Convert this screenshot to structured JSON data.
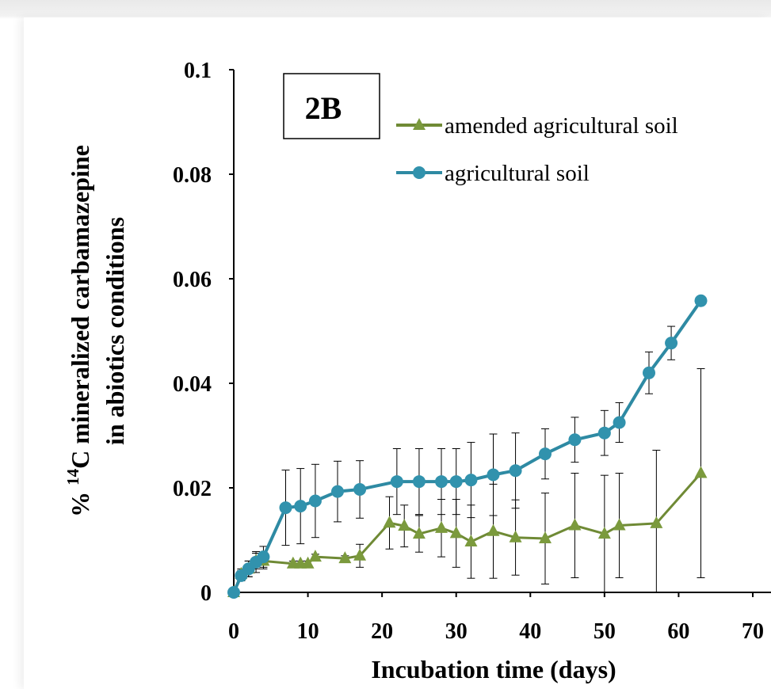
{
  "chart_data": {
    "type": "line",
    "panel_label": "2B",
    "title": "",
    "xlabel": "Incubation time (days)",
    "ylabel_line1_prefix": "% ",
    "ylabel_line1_sup": "14",
    "ylabel_line1_rest": "C mineralized carbamazepine",
    "ylabel_line2": "in abiotics conditions",
    "xlim": [
      0,
      70
    ],
    "ylim": [
      0,
      0.1
    ],
    "xticks": [
      "0",
      "10",
      "20",
      "30",
      "40",
      "50",
      "60",
      "70"
    ],
    "yticks": [
      "0",
      "0.02",
      "0.04",
      "0.06",
      "0.08",
      "0.1"
    ],
    "grid": false,
    "legend_position": "top-right",
    "series": [
      {
        "name": "amended agricultural soil",
        "marker": "triangle",
        "color": "#6f8a35",
        "marker_color": "#7b9a3d",
        "points": [
          {
            "x": 0,
            "y": 0,
            "err": 0
          },
          {
            "x": 1,
            "y": 0.0035,
            "err": 0.001
          },
          {
            "x": 2,
            "y": 0.0045,
            "err": 0.0015
          },
          {
            "x": 3,
            "y": 0.006,
            "err": 0.0015
          },
          {
            "x": 4,
            "y": 0.006,
            "err": 0.0015
          },
          {
            "x": 8,
            "y": 0.0055,
            "err": 0.0005
          },
          {
            "x": 9,
            "y": 0.0055,
            "err": 0.0005
          },
          {
            "x": 10,
            "y": 0.0055,
            "err": 0.0005
          },
          {
            "x": 11,
            "y": 0.0068,
            "err": 0.0005
          },
          {
            "x": 15,
            "y": 0.0065,
            "err": 0.0005
          },
          {
            "x": 17,
            "y": 0.007,
            "err": 0.0022
          },
          {
            "x": 21,
            "y": 0.0133,
            "err": 0.005
          },
          {
            "x": 23,
            "y": 0.0127,
            "err": 0.004
          },
          {
            "x": 25,
            "y": 0.0112,
            "err": 0.0035
          },
          {
            "x": 28,
            "y": 0.0123,
            "err": 0.0055
          },
          {
            "x": 30,
            "y": 0.0113,
            "err": 0.0065
          },
          {
            "x": 32,
            "y": 0.0097,
            "err": 0.007
          },
          {
            "x": 35,
            "y": 0.0117,
            "err": 0.009
          },
          {
            "x": 38,
            "y": 0.0105,
            "err": 0.0072
          },
          {
            "x": 42,
            "y": 0.0103,
            "err": 0.0087
          },
          {
            "x": 46,
            "y": 0.0128,
            "err": 0.01
          },
          {
            "x": 50,
            "y": 0.0112,
            "err": 0.0112
          },
          {
            "x": 52,
            "y": 0.0128,
            "err": 0.01
          },
          {
            "x": 57,
            "y": 0.0132,
            "err": 0.014
          },
          {
            "x": 63,
            "y": 0.0228,
            "err": 0.02
          }
        ]
      },
      {
        "name": "agricultural soil",
        "marker": "circle",
        "color": "#2e8aa3",
        "marker_color": "#3192ad",
        "points": [
          {
            "x": 0,
            "y": 0,
            "err": 0
          },
          {
            "x": 1,
            "y": 0.0032,
            "err": 0.001
          },
          {
            "x": 2,
            "y": 0.0045,
            "err": 0.0015
          },
          {
            "x": 3,
            "y": 0.0058,
            "err": 0.002
          },
          {
            "x": 4,
            "y": 0.0068,
            "err": 0.002
          },
          {
            "x": 7,
            "y": 0.0162,
            "err": 0.0072
          },
          {
            "x": 9,
            "y": 0.0165,
            "err": 0.0072
          },
          {
            "x": 11,
            "y": 0.0175,
            "err": 0.007
          },
          {
            "x": 14,
            "y": 0.0193,
            "err": 0.0058
          },
          {
            "x": 17,
            "y": 0.0197,
            "err": 0.0055
          },
          {
            "x": 22,
            "y": 0.0212,
            "err": 0.0063
          },
          {
            "x": 25,
            "y": 0.0212,
            "err": 0.0063
          },
          {
            "x": 28,
            "y": 0.0212,
            "err": 0.0063
          },
          {
            "x": 30,
            "y": 0.0212,
            "err": 0.0063
          },
          {
            "x": 32,
            "y": 0.0215,
            "err": 0.0072
          },
          {
            "x": 35,
            "y": 0.0225,
            "err": 0.0078
          },
          {
            "x": 38,
            "y": 0.0233,
            "err": 0.0072
          },
          {
            "x": 42,
            "y": 0.0265,
            "err": 0.0048
          },
          {
            "x": 46,
            "y": 0.0292,
            "err": 0.0043
          },
          {
            "x": 50,
            "y": 0.0305,
            "err": 0.0043
          },
          {
            "x": 52,
            "y": 0.0325,
            "err": 0.0038
          },
          {
            "x": 56,
            "y": 0.042,
            "err": 0.004
          },
          {
            "x": 59,
            "y": 0.0477,
            "err": 0.0032
          },
          {
            "x": 63,
            "y": 0.0558,
            "err": 0.0003
          }
        ]
      }
    ]
  }
}
